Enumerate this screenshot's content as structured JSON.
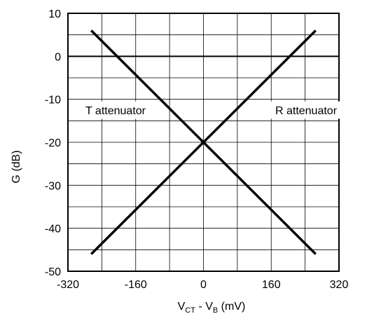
{
  "chart_data": {
    "type": "line",
    "title": "",
    "xlabel": {
      "main": "V",
      "sub1": "CT",
      "mid": " - V",
      "sub2": "B",
      "tail": " (mV)"
    },
    "ylabel": "G (dB)",
    "xlim": [
      -320,
      320
    ],
    "ylim": [
      -50,
      10
    ],
    "x_ticks": [
      -320,
      -160,
      0,
      160,
      320
    ],
    "y_ticks": [
      10,
      0,
      -10,
      -20,
      -30,
      -40,
      -50
    ],
    "x_minor_step": 80,
    "y_minor_step": 5,
    "grid": true,
    "reference_line": {
      "y": 0
    },
    "series": [
      {
        "name": "T attenuator",
        "x": [
          -265,
          265
        ],
        "y": [
          6,
          -46
        ]
      },
      {
        "name": "R attenuator",
        "x": [
          -265,
          265
        ],
        "y": [
          -46,
          6
        ]
      }
    ]
  }
}
